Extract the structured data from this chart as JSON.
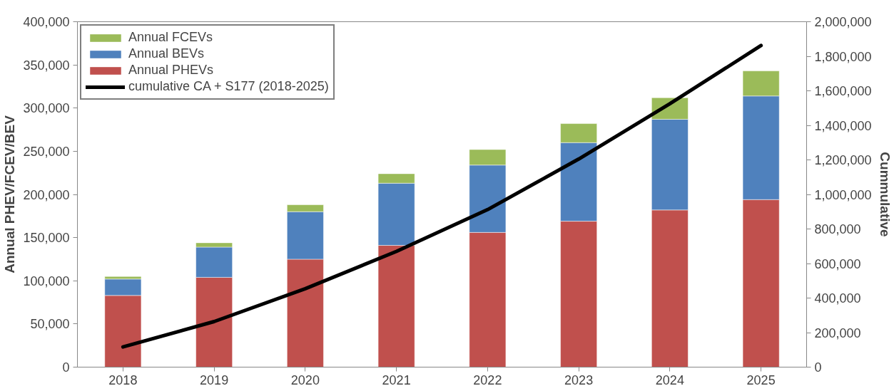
{
  "chart_data": {
    "type": "bar",
    "stacked": true,
    "ylabel": "Annual PHEV/FCEV/BEV",
    "y2label": "Cummulative",
    "categories": [
      "2018",
      "2019",
      "2020",
      "2021",
      "2022",
      "2023",
      "2024",
      "2025"
    ],
    "series": [
      {
        "name": "Annual PHEVs",
        "color": "#c0504d",
        "values": [
          83000,
          104000,
          125000,
          141000,
          156000,
          169000,
          182000,
          194000
        ]
      },
      {
        "name": "Annual BEVs",
        "color": "#4f81bd",
        "values": [
          19000,
          35000,
          55000,
          72000,
          78000,
          91000,
          105000,
          120000
        ]
      },
      {
        "name": "Annual FCEVs",
        "color": "#9bbb59",
        "values": [
          3000,
          5000,
          8000,
          11000,
          18000,
          22000,
          25000,
          29000
        ]
      },
      {
        "name": "cumulative CA + S177 (2018-2025)",
        "type": "line",
        "axis": "y2",
        "color": "#000000",
        "values": [
          117000,
          264000,
          454000,
          670000,
          912000,
          1205000,
          1525000,
          1862000
        ]
      }
    ],
    "ylim": [
      0,
      400000
    ],
    "yticks": [
      {
        "value": 0,
        "label": "0"
      },
      {
        "value": 50000,
        "label": "50,000"
      },
      {
        "value": 100000,
        "label": "100,000"
      },
      {
        "value": 150000,
        "label": "150,000"
      },
      {
        "value": 200000,
        "label": "200,000"
      },
      {
        "value": 250000,
        "label": "250,000"
      },
      {
        "value": 300000,
        "label": "300,000"
      },
      {
        "value": 350000,
        "label": "350,000"
      },
      {
        "value": 400000,
        "label": "400,000"
      }
    ],
    "y2lim": [
      0,
      2000000
    ],
    "y2ticks": [
      {
        "value": 0,
        "label": "0"
      },
      {
        "value": 200000,
        "label": "200,000"
      },
      {
        "value": 400000,
        "label": "400,000"
      },
      {
        "value": 600000,
        "label": "600,000"
      },
      {
        "value": 800000,
        "label": "800,000"
      },
      {
        "value": 1000000,
        "label": "1,000,000"
      },
      {
        "value": 1200000,
        "label": "1,200,000"
      },
      {
        "value": 1400000,
        "label": "1,400,000"
      },
      {
        "value": 1600000,
        "label": "1,600,000"
      },
      {
        "value": 1800000,
        "label": "1,800,000"
      },
      {
        "value": 2000000,
        "label": "2,000,000"
      }
    ],
    "legend": "top left",
    "grid": false,
    "marker": "none",
    "line_style": "solid"
  }
}
